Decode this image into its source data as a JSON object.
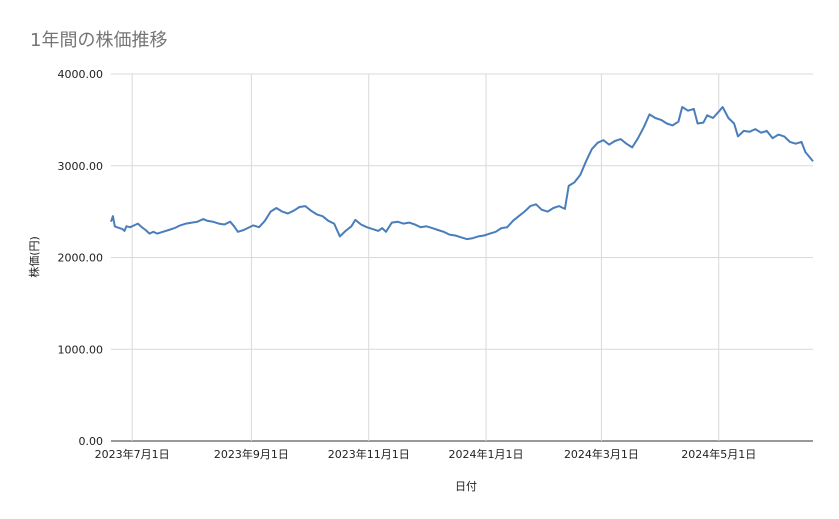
{
  "chart_data": {
    "type": "line",
    "title": "1年間の株価推移",
    "xlabel": "日付",
    "ylabel": "株価(円)",
    "ylim": [
      0,
      4000
    ],
    "y_ticks": [
      "0.00",
      "1000.00",
      "2000.00",
      "3000.00",
      "4000.00"
    ],
    "x_ticks": [
      "2023年7月1日",
      "2023年9月1日",
      "2023年11月1日",
      "2024年1月1日",
      "2024年3月1日",
      "2024年5月1日"
    ],
    "x_range": [
      "2023-06-20",
      "2024-06-19"
    ],
    "grid": true,
    "line_color": "#4a7ebb",
    "series": [
      {
        "name": "",
        "points": [
          [
            "2023-06-20",
            2390
          ],
          [
            "2023-06-21",
            2450
          ],
          [
            "2023-06-22",
            2340
          ],
          [
            "2023-06-23",
            2330
          ],
          [
            "2023-06-26",
            2310
          ],
          [
            "2023-06-27",
            2290
          ],
          [
            "2023-06-28",
            2340
          ],
          [
            "2023-06-30",
            2330
          ],
          [
            "2023-07-02",
            2350
          ],
          [
            "2023-07-04",
            2370
          ],
          [
            "2023-07-06",
            2330
          ],
          [
            "2023-07-08",
            2300
          ],
          [
            "2023-07-10",
            2260
          ],
          [
            "2023-07-12",
            2280
          ],
          [
            "2023-07-14",
            2260
          ],
          [
            "2023-07-17",
            2280
          ],
          [
            "2023-07-20",
            2300
          ],
          [
            "2023-07-23",
            2320
          ],
          [
            "2023-07-26",
            2350
          ],
          [
            "2023-07-29",
            2370
          ],
          [
            "2023-08-01",
            2380
          ],
          [
            "2023-08-04",
            2390
          ],
          [
            "2023-08-07",
            2420
          ],
          [
            "2023-08-09",
            2400
          ],
          [
            "2023-08-12",
            2390
          ],
          [
            "2023-08-15",
            2370
          ],
          [
            "2023-08-18",
            2360
          ],
          [
            "2023-08-21",
            2390
          ],
          [
            "2023-08-23",
            2340
          ],
          [
            "2023-08-25",
            2280
          ],
          [
            "2023-08-28",
            2300
          ],
          [
            "2023-08-30",
            2320
          ],
          [
            "2023-09-02",
            2350
          ],
          [
            "2023-09-05",
            2330
          ],
          [
            "2023-09-08",
            2400
          ],
          [
            "2023-09-11",
            2500
          ],
          [
            "2023-09-14",
            2540
          ],
          [
            "2023-09-17",
            2500
          ],
          [
            "2023-09-20",
            2480
          ],
          [
            "2023-09-23",
            2510
          ],
          [
            "2023-09-26",
            2550
          ],
          [
            "2023-09-29",
            2560
          ],
          [
            "2023-10-02",
            2510
          ],
          [
            "2023-10-05",
            2470
          ],
          [
            "2023-10-08",
            2450
          ],
          [
            "2023-10-11",
            2400
          ],
          [
            "2023-10-14",
            2370
          ],
          [
            "2023-10-17",
            2230
          ],
          [
            "2023-10-20",
            2290
          ],
          [
            "2023-10-23",
            2340
          ],
          [
            "2023-10-25",
            2410
          ],
          [
            "2023-10-28",
            2360
          ],
          [
            "2023-10-31",
            2330
          ],
          [
            "2023-11-03",
            2310
          ],
          [
            "2023-11-06",
            2290
          ],
          [
            "2023-11-08",
            2320
          ],
          [
            "2023-11-10",
            2280
          ],
          [
            "2023-11-13",
            2380
          ],
          [
            "2023-11-16",
            2390
          ],
          [
            "2023-11-19",
            2370
          ],
          [
            "2023-11-22",
            2380
          ],
          [
            "2023-11-25",
            2360
          ],
          [
            "2023-11-28",
            2330
          ],
          [
            "2023-12-01",
            2340
          ],
          [
            "2023-12-04",
            2320
          ],
          [
            "2023-12-07",
            2300
          ],
          [
            "2023-12-10",
            2280
          ],
          [
            "2023-12-13",
            2250
          ],
          [
            "2023-12-16",
            2240
          ],
          [
            "2023-12-19",
            2220
          ],
          [
            "2023-12-22",
            2200
          ],
          [
            "2023-12-25",
            2210
          ],
          [
            "2023-12-28",
            2230
          ],
          [
            "2023-12-31",
            2240
          ],
          [
            "2024-01-03",
            2260
          ],
          [
            "2024-01-06",
            2280
          ],
          [
            "2024-01-09",
            2320
          ],
          [
            "2024-01-12",
            2330
          ],
          [
            "2024-01-15",
            2400
          ],
          [
            "2024-01-18",
            2450
          ],
          [
            "2024-01-21",
            2500
          ],
          [
            "2024-01-24",
            2560
          ],
          [
            "2024-01-27",
            2580
          ],
          [
            "2024-01-30",
            2520
          ],
          [
            "2024-02-02",
            2500
          ],
          [
            "2024-02-05",
            2540
          ],
          [
            "2024-02-08",
            2560
          ],
          [
            "2024-02-11",
            2530
          ],
          [
            "2024-02-13",
            2780
          ],
          [
            "2024-02-16",
            2820
          ],
          [
            "2024-02-19",
            2900
          ],
          [
            "2024-02-22",
            3050
          ],
          [
            "2024-02-25",
            3180
          ],
          [
            "2024-02-28",
            3250
          ],
          [
            "2024-03-02",
            3280
          ],
          [
            "2024-03-05",
            3230
          ],
          [
            "2024-03-08",
            3270
          ],
          [
            "2024-03-11",
            3290
          ],
          [
            "2024-03-14",
            3240
          ],
          [
            "2024-03-17",
            3200
          ],
          [
            "2024-03-20",
            3300
          ],
          [
            "2024-03-23",
            3420
          ],
          [
            "2024-03-26",
            3560
          ],
          [
            "2024-03-29",
            3520
          ],
          [
            "2024-04-01",
            3500
          ],
          [
            "2024-04-04",
            3460
          ],
          [
            "2024-04-07",
            3440
          ],
          [
            "2024-04-10",
            3480
          ],
          [
            "2024-04-12",
            3640
          ],
          [
            "2024-04-15",
            3600
          ],
          [
            "2024-04-18",
            3620
          ],
          [
            "2024-04-20",
            3460
          ],
          [
            "2024-04-23",
            3470
          ],
          [
            "2024-04-25",
            3550
          ],
          [
            "2024-04-28",
            3520
          ],
          [
            "2024-05-01",
            3590
          ],
          [
            "2024-05-03",
            3640
          ],
          [
            "2024-05-06",
            3520
          ],
          [
            "2024-05-09",
            3460
          ],
          [
            "2024-05-11",
            3320
          ],
          [
            "2024-05-14",
            3380
          ],
          [
            "2024-05-17",
            3370
          ],
          [
            "2024-05-20",
            3400
          ],
          [
            "2024-05-23",
            3360
          ],
          [
            "2024-05-26",
            3380
          ],
          [
            "2024-05-29",
            3300
          ],
          [
            "2024-06-01",
            3340
          ],
          [
            "2024-06-04",
            3320
          ],
          [
            "2024-06-07",
            3260
          ],
          [
            "2024-06-10",
            3240
          ],
          [
            "2024-06-13",
            3260
          ],
          [
            "2024-06-15",
            3150
          ],
          [
            "2024-06-17",
            3100
          ],
          [
            "2024-06-19",
            3050
          ]
        ]
      }
    ]
  }
}
